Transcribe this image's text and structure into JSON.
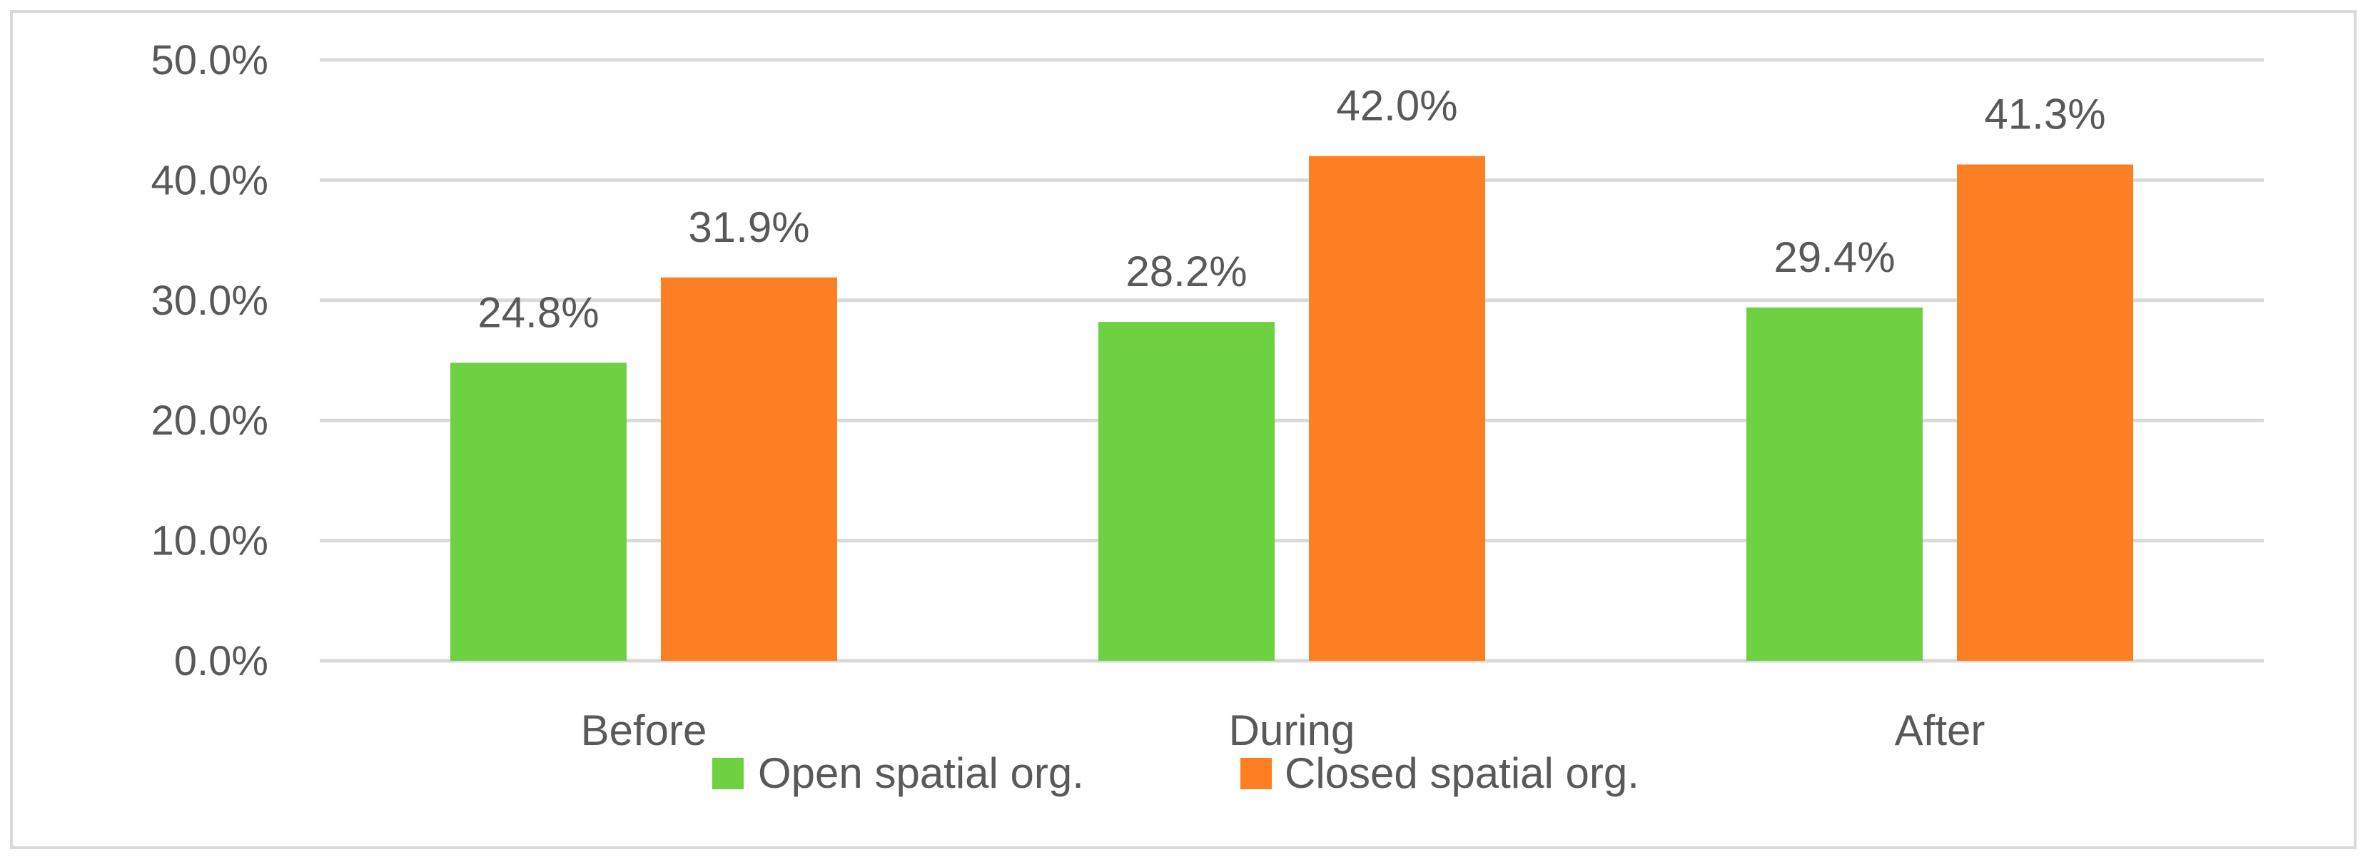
{
  "chart_data": {
    "type": "bar",
    "title": "",
    "xlabel": "",
    "ylabel": "",
    "categories": [
      "Before",
      "During",
      "After"
    ],
    "series": [
      {
        "name": "Open spatial org.",
        "color": "#6dd142",
        "values": [
          24.8,
          28.2,
          29.4
        ],
        "labels": [
          "24.8%",
          "28.2%",
          "29.4%"
        ]
      },
      {
        "name": "Closed spatial org.",
        "color": "#fd7f24",
        "values": [
          31.9,
          42.0,
          41.3
        ],
        "labels": [
          "31.9%",
          "42.0%",
          "41.3%"
        ]
      }
    ],
    "ylim": [
      0,
      50
    ],
    "yticks": [
      0,
      10,
      20,
      30,
      40,
      50
    ],
    "ytick_labels": [
      "0.0%",
      "10.0%",
      "20.0%",
      "30.0%",
      "40.0%",
      "50.0%"
    ],
    "grid": true,
    "legend_position": "bottom"
  },
  "colors": {
    "gridline": "#d9d9d9",
    "text": "#595959",
    "border": "#d9d9d9"
  }
}
